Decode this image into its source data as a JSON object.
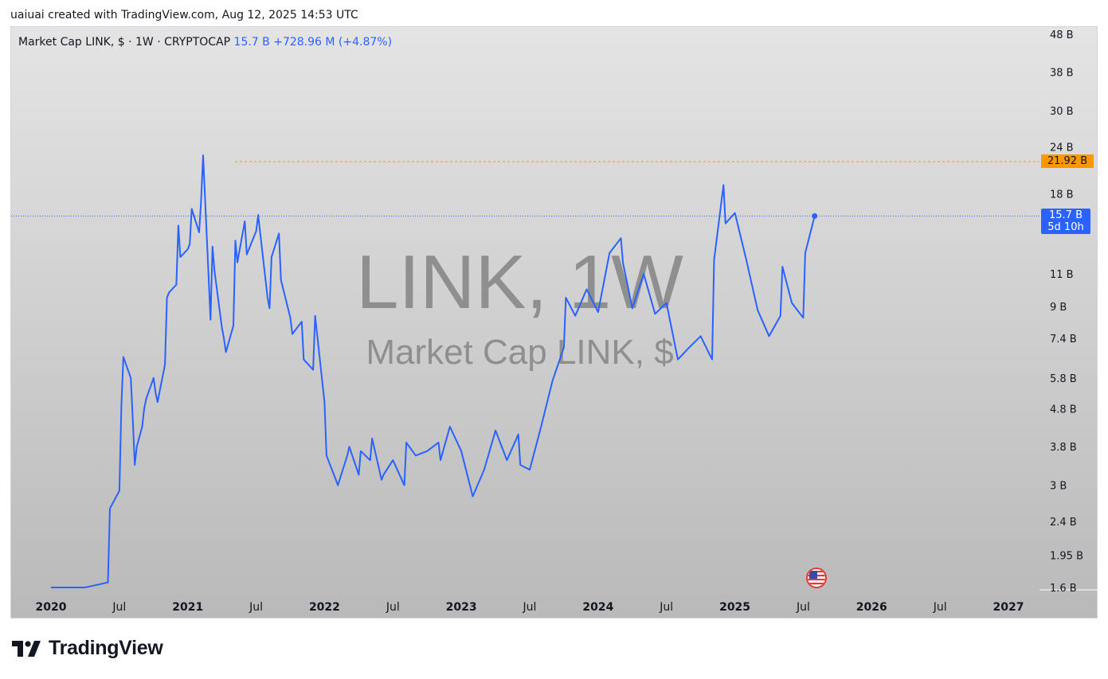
{
  "header": {
    "text": "uaiuai created with TradingView.com, Aug 12, 2025 14:53 UTC"
  },
  "legend": {
    "title": "Market Cap LINK, $ · 1W · CRYPTOCAP",
    "value": "15.7 B",
    "change": "+728.96 M (+4.87%)"
  },
  "watermark": {
    "main": "LINK, 1W",
    "sub": "Market Cap LINK, $"
  },
  "badges": {
    "ath": "21.92 B",
    "last": "15.7 B",
    "countdown": "5d 10h"
  },
  "brand": {
    "name": "TradingView"
  },
  "colors": {
    "line": "#2962ff",
    "ath": "#ff9800",
    "accent": "#2962ff"
  },
  "chart_data": {
    "type": "line",
    "series": [
      {
        "name": "Market Cap LINK, $",
        "x": [
          "2020-01",
          "2020-04",
          "2020-06",
          "2020-06",
          "2020-07",
          "2020-07",
          "2020-07",
          "2020-08",
          "2020-08",
          "2020-08",
          "2020-08",
          "2020-09",
          "2020-09",
          "2020-09",
          "2020-10",
          "2020-10",
          "2020-10",
          "2020-11",
          "2020-11",
          "2020-11",
          "2020-12",
          "2020-12",
          "2020-12",
          "2021-01",
          "2021-01",
          "2021-01",
          "2021-02",
          "2021-02",
          "2021-02",
          "2021-03",
          "2021-03",
          "2021-03",
          "2021-04",
          "2021-04",
          "2021-04",
          "2021-05",
          "2021-05",
          "2021-05",
          "2021-06",
          "2021-06",
          "2021-07",
          "2021-07",
          "2021-08",
          "2021-08",
          "2021-08",
          "2021-09",
          "2021-09",
          "2021-10",
          "2021-10",
          "2021-11",
          "2021-11",
          "2021-12",
          "2021-12",
          "2022-01",
          "2022-01",
          "2022-02",
          "2022-02",
          "2022-03",
          "2022-03",
          "2022-04",
          "2022-04",
          "2022-05",
          "2022-05",
          "2022-06",
          "2022-06",
          "2022-07",
          "2022-08",
          "2022-08",
          "2022-09",
          "2022-10",
          "2022-11",
          "2022-11",
          "2022-12",
          "2023-01",
          "2023-02",
          "2023-03",
          "2023-04",
          "2023-05",
          "2023-06",
          "2023-06",
          "2023-07",
          "2023-08",
          "2023-09",
          "2023-10",
          "2023-10",
          "2023-11",
          "2023-12",
          "2024-01",
          "2024-02",
          "2024-03",
          "2024-03",
          "2024-04",
          "2024-05",
          "2024-06",
          "2024-07",
          "2024-08",
          "2024-09",
          "2024-10",
          "2024-11",
          "2024-11",
          "2024-12",
          "2024-12",
          "2025-01",
          "2025-02",
          "2025-03",
          "2025-04",
          "2025-05",
          "2025-05",
          "2025-06",
          "2025-07",
          "2025-07",
          "2025-08"
        ],
        "values": [
          1.6,
          1.6,
          1.65,
          2.6,
          2.9,
          4.9,
          6.6,
          5.8,
          4.5,
          3.4,
          3.8,
          4.3,
          4.8,
          5.1,
          5.8,
          5.3,
          5.0,
          6.3,
          9.5,
          9.8,
          10.3,
          14.8,
          12.2,
          12.8,
          13.2,
          16.4,
          14.2,
          17.3,
          22.8,
          8.3,
          13.0,
          11.2,
          7.9,
          7.4,
          6.8,
          8.0,
          13.5,
          11.8,
          15.2,
          12.4,
          14.3,
          15.8,
          9.5,
          8.9,
          12.2,
          14.1,
          10.6,
          8.4,
          7.6,
          8.2,
          6.5,
          6.1,
          8.5,
          5.0,
          3.6,
          3.1,
          3.0,
          3.6,
          3.8,
          3.2,
          3.7,
          3.5,
          4.0,
          3.1,
          3.2,
          3.5,
          3.0,
          3.9,
          3.6,
          3.7,
          3.9,
          3.5,
          4.3,
          3.7,
          2.8,
          3.3,
          4.2,
          3.5,
          4.1,
          3.4,
          3.3,
          4.3,
          5.7,
          7.0,
          9.5,
          8.5,
          10.0,
          8.7,
          12.5,
          13.7,
          11.8,
          8.9,
          11.0,
          8.6,
          9.2,
          6.5,
          7.0,
          7.5,
          6.5,
          12.0,
          19.0,
          15.0,
          16.0,
          12.0,
          8.8,
          7.5,
          8.5,
          11.5,
          9.2,
          8.4,
          12.5,
          15.7
        ]
      }
    ],
    "reference_lines": [
      {
        "label": "21.92 B",
        "value": 21.92,
        "color": "#ff9800"
      },
      {
        "label": "15.7 B",
        "value": 15.7,
        "color": "#2962ff"
      }
    ],
    "x_ticks": [
      {
        "label": "2020",
        "date": "2020-01",
        "bold": true
      },
      {
        "label": "Jul",
        "date": "2020-07",
        "bold": false
      },
      {
        "label": "2021",
        "date": "2021-01",
        "bold": true
      },
      {
        "label": "Jul",
        "date": "2021-07",
        "bold": false
      },
      {
        "label": "2022",
        "date": "2022-01",
        "bold": true
      },
      {
        "label": "Jul",
        "date": "2022-07",
        "bold": false
      },
      {
        "label": "2023",
        "date": "2023-01",
        "bold": true
      },
      {
        "label": "Jul",
        "date": "2023-07",
        "bold": false
      },
      {
        "label": "2024",
        "date": "2024-01",
        "bold": true
      },
      {
        "label": "Jul",
        "date": "2024-07",
        "bold": false
      },
      {
        "label": "2025",
        "date": "2025-01",
        "bold": true
      },
      {
        "label": "Jul",
        "date": "2025-07",
        "bold": false
      },
      {
        "label": "2026",
        "date": "2026-01",
        "bold": true
      },
      {
        "label": "Jul",
        "date": "2026-07",
        "bold": false
      },
      {
        "label": "2027",
        "date": "2027-01",
        "bold": true
      }
    ],
    "y_ticks": [
      {
        "label": "48 B",
        "value": 48
      },
      {
        "label": "38 B",
        "value": 38
      },
      {
        "label": "30 B",
        "value": 30
      },
      {
        "label": "24 B",
        "value": 24
      },
      {
        "label": "18 B",
        "value": 18
      },
      {
        "label": "11 B",
        "value": 11
      },
      {
        "label": "9 B",
        "value": 9
      },
      {
        "label": "7.4 B",
        "value": 7.4
      },
      {
        "label": "5.8 B",
        "value": 5.8
      },
      {
        "label": "4.8 B",
        "value": 4.8
      },
      {
        "label": "3.8 B",
        "value": 3.8
      },
      {
        "label": "3 B",
        "value": 3
      },
      {
        "label": "2.4 B",
        "value": 2.4
      },
      {
        "label": "1.95 B",
        "value": 1.95
      },
      {
        "label": "1.6 B",
        "value": 1.6
      }
    ],
    "y_scale": "log",
    "ylim": [
      1.6,
      48
    ],
    "grid": false,
    "title": "Market Cap LINK, $ · 1W · CRYPTOCAP"
  }
}
